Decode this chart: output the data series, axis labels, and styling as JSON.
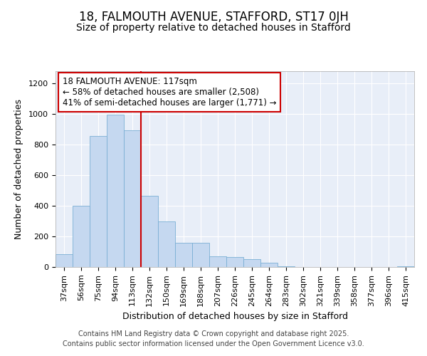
{
  "title1": "18, FALMOUTH AVENUE, STAFFORD, ST17 0JH",
  "title2": "Size of property relative to detached houses in Stafford",
  "xlabel": "Distribution of detached houses by size in Stafford",
  "ylabel": "Number of detached properties",
  "categories": [
    "37sqm",
    "56sqm",
    "75sqm",
    "94sqm",
    "113sqm",
    "132sqm",
    "150sqm",
    "169sqm",
    "188sqm",
    "207sqm",
    "226sqm",
    "245sqm",
    "264sqm",
    "283sqm",
    "302sqm",
    "321sqm",
    "339sqm",
    "358sqm",
    "377sqm",
    "396sqm",
    "415sqm"
  ],
  "values": [
    85,
    400,
    855,
    995,
    895,
    465,
    300,
    160,
    160,
    70,
    65,
    50,
    30,
    5,
    0,
    0,
    0,
    0,
    0,
    0,
    5
  ],
  "bar_color": "#c5d8f0",
  "bar_edgecolor": "#7aafd4",
  "vline_index": 4,
  "vline_color": "#cc0000",
  "annotation_text": "18 FALMOUTH AVENUE: 117sqm\n← 58% of detached houses are smaller (2,508)\n41% of semi-detached houses are larger (1,771) →",
  "annotation_box_facecolor": "#ffffff",
  "annotation_box_edgecolor": "#cc0000",
  "ylim": [
    0,
    1280
  ],
  "yticks": [
    0,
    200,
    400,
    600,
    800,
    1000,
    1200
  ],
  "footer1": "Contains HM Land Registry data © Crown copyright and database right 2025.",
  "footer2": "Contains public sector information licensed under the Open Government Licence v3.0.",
  "bg_color": "#ffffff",
  "plot_bg_color": "#e8eef8",
  "grid_color": "#ffffff",
  "title_fontsize": 12,
  "subtitle_fontsize": 10,
  "axis_label_fontsize": 9,
  "tick_fontsize": 8,
  "annotation_fontsize": 8.5,
  "footer_fontsize": 7
}
